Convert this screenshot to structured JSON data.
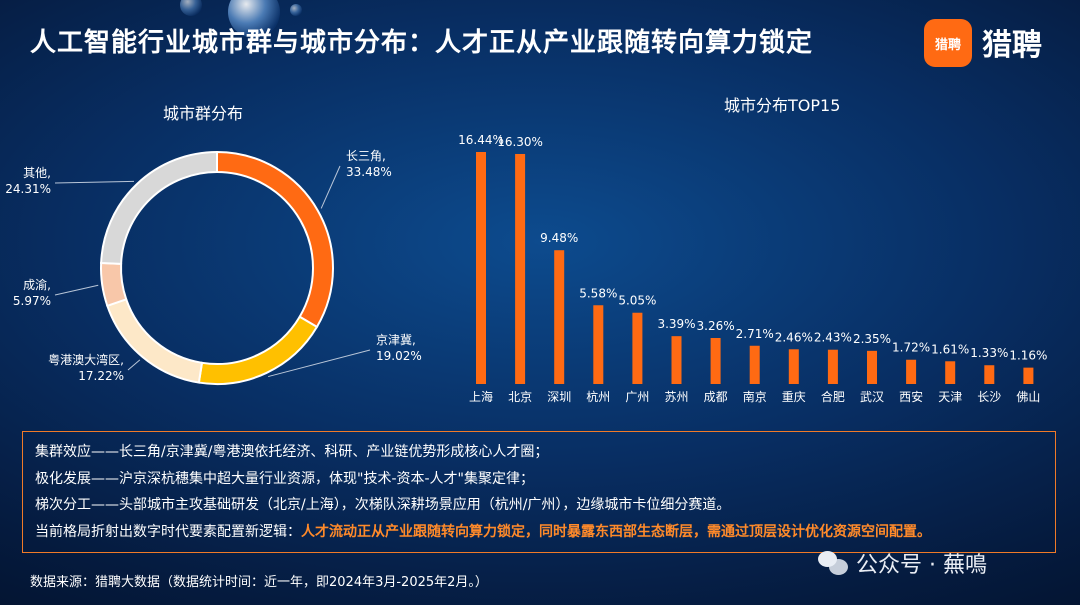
{
  "header": {
    "title": "人工智能行业城市群与城市分布：人才正从产业跟随转向算力锁定",
    "logo_text": "猎聘",
    "brand": "猎聘"
  },
  "chart_data": [
    {
      "type": "pie",
      "title": "城市群分布",
      "donut": true,
      "slices": [
        {
          "label": "长三角,",
          "value": 33.48,
          "value_label": "33.48%",
          "color": "#ff6a13"
        },
        {
          "label": "京津冀,",
          "value": 19.02,
          "value_label": "19.02%",
          "color": "#ffc000"
        },
        {
          "label": "粤港澳大湾区,",
          "value": 17.22,
          "value_label": "17.22%",
          "color": "#fde8c8"
        },
        {
          "label": "成渝,",
          "value": 5.97,
          "value_label": "5.97%",
          "color": "#f8c7a9"
        },
        {
          "label": "其他,",
          "value": 24.31,
          "value_label": "24.31%",
          "color": "#d8d8d8"
        }
      ]
    },
    {
      "type": "bar",
      "title": "城市分布TOP15",
      "categories": [
        "上海",
        "北京",
        "深圳",
        "杭州",
        "广州",
        "苏州",
        "成都",
        "南京",
        "重庆",
        "合肥",
        "武汉",
        "西安",
        "天津",
        "长沙",
        "佛山"
      ],
      "values": [
        16.44,
        16.3,
        9.48,
        5.58,
        5.05,
        3.39,
        3.26,
        2.71,
        2.46,
        2.43,
        2.35,
        1.72,
        1.61,
        1.33,
        1.16
      ],
      "value_labels": [
        "16.44%",
        "16.30%",
        "9.48%",
        "5.58%",
        "5.05%",
        "3.39%",
        "3.26%",
        "2.71%",
        "2.46%",
        "2.43%",
        "2.35%",
        "1.72%",
        "1.61%",
        "1.33%",
        "1.16%"
      ],
      "ylim": [
        0,
        16.44
      ],
      "color": "#ff6a13",
      "grid": false
    }
  ],
  "notes": {
    "line1": "集群效应——长三角/京津冀/粤港澳依托经济、科研、产业链优势形成核心人才圈；",
    "line2": "极化发展——沪京深杭穗集中超大量行业资源，体现\"技术-资本-人才\"集聚定律；",
    "line3": "梯次分工——头部城市主攻基础研发（北京/上海），次梯队深耕场景应用（杭州/广州），边缘城市卡位细分赛道。",
    "line4_prefix": "当前格局折射出数字时代要素配置新逻辑：",
    "line4_highlight": "人才流动正从产业跟随转向算力锁定，同时暴露东西部生态断层，需通过顶层设计优化资源空间配置。"
  },
  "source": "数据来源：猎聘大数据（数据统计时间：近一年，即2024年3月-2025年2月。）",
  "watermark": "公众号 · 蕪鳴"
}
